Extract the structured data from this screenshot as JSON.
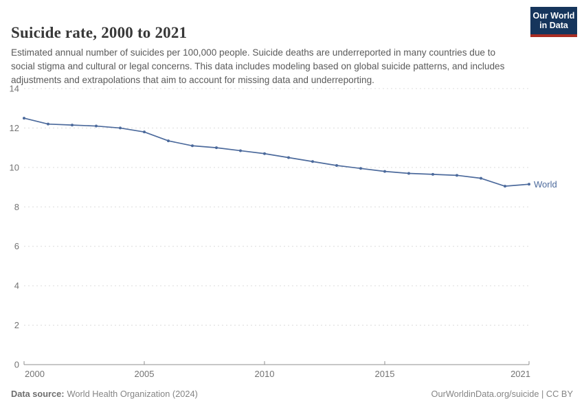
{
  "header": {
    "title": "Suicide rate, 2000 to 2021",
    "subtitle": "Estimated annual number of suicides per 100,000 people. Suicide deaths are underreported in many countries due to social stigma and cultural or legal concerns. This data includes modeling based on global suicide patterns, and includes adjustments and extrapolations that aim to account for missing data and underreporting.",
    "logo": {
      "line1": "Our World",
      "line2": "in Data",
      "bg_color": "#16355c",
      "accent_color": "#aa2d23"
    }
  },
  "chart_data": {
    "type": "line",
    "title": "Suicide rate, 2000 to 2021",
    "xlabel": "",
    "ylabel": "",
    "x": [
      2000,
      2001,
      2002,
      2003,
      2004,
      2005,
      2006,
      2007,
      2008,
      2009,
      2010,
      2011,
      2012,
      2013,
      2014,
      2015,
      2016,
      2017,
      2018,
      2019,
      2020,
      2021
    ],
    "series": [
      {
        "name": "World",
        "color": "#4c6a9c",
        "values": [
          12.5,
          12.2,
          12.15,
          12.1,
          12.0,
          11.8,
          11.35,
          11.1,
          11.0,
          10.85,
          10.7,
          10.5,
          10.3,
          10.1,
          9.95,
          9.8,
          9.7,
          9.65,
          9.6,
          9.45,
          9.05,
          9.15
        ]
      }
    ],
    "ylim": [
      0,
      14
    ],
    "yticks": [
      0,
      2,
      4,
      6,
      8,
      10,
      12,
      14
    ],
    "xticks": [
      2000,
      2005,
      2010,
      2015,
      2021
    ],
    "grid": "horizontal-dashed",
    "legend": "end-of-line-label",
    "grid_color": "#dcdcdc",
    "axis_color": "#8f8f8f",
    "tick_label_color": "#737373"
  },
  "footer": {
    "source_label": "Data source:",
    "source_value": "World Health Organization (2024)",
    "attribution": "OurWorldinData.org/suicide | CC BY"
  }
}
